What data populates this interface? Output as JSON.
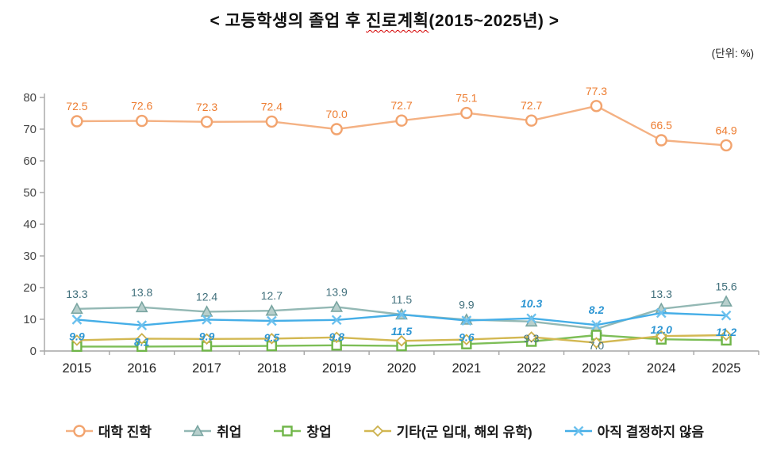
{
  "title": {
    "prefix": "< 고등학생의 졸업 후 ",
    "underlined": "진로계획",
    "suffix": "(2015~2025년) >"
  },
  "unit_label": "(단위: %)",
  "chart_data": {
    "type": "line",
    "title": "고등학생의 졸업 후 진로계획(2015~2025년)",
    "unit": "%",
    "categories": [
      "2015",
      "2016",
      "2017",
      "2018",
      "2019",
      "2020",
      "2021",
      "2022",
      "2023",
      "2024",
      "2025"
    ],
    "ylim": [
      0,
      80
    ],
    "yticks": [
      0,
      10,
      20,
      30,
      40,
      50,
      60,
      70,
      80
    ],
    "grid": false,
    "legend_position": "bottom",
    "axis_color": "#a6a6a6",
    "ytick_label_color": "#444444",
    "xtick_label_color": "#222222",
    "series": [
      {
        "key": "univ",
        "name": "대학 진학",
        "marker": "circle",
        "line_color": "#F4B183",
        "marker_stroke": "#F2A46F",
        "marker_fill": "#FFFFFF",
        "label_color": "#ED7D31",
        "label_style": "normal",
        "values": [
          72.5,
          72.6,
          72.3,
          72.4,
          70.0,
          72.7,
          75.1,
          72.7,
          77.3,
          66.5,
          64.9
        ],
        "label_sides": [
          "above",
          "above",
          "above",
          "above",
          "above",
          "above",
          "above",
          "above",
          "above",
          "above",
          "above"
        ]
      },
      {
        "key": "employment",
        "name": "취업",
        "marker": "triangle",
        "line_color": "#93B8B4",
        "marker_stroke": "#79A5A1",
        "marker_fill": "#B7CFCC",
        "label_color": "#41707C",
        "label_style": "normal",
        "values": [
          13.3,
          13.8,
          12.4,
          12.7,
          13.9,
          11.5,
          9.9,
          9.3,
          7.0,
          13.3,
          15.6
        ],
        "label_sides": [
          "above",
          "above",
          "above",
          "above",
          "above",
          "above",
          "above",
          "below",
          "below",
          "above",
          "above"
        ]
      },
      {
        "key": "startup",
        "name": "창업",
        "marker": "square",
        "line_color": "#7DBE57",
        "marker_stroke": "#6FB548",
        "marker_fill": "#FFFFFF",
        "values": [
          1.4,
          1.4,
          1.5,
          1.6,
          1.8,
          1.6,
          2.2,
          3.0,
          5.0,
          3.7,
          3.4
        ],
        "label_sides": null
      },
      {
        "key": "etc",
        "name": "기타(군 입대, 해외 유학)",
        "marker": "diamond",
        "line_color": "#D3B852",
        "marker_stroke": "#CBB04C",
        "marker_fill": "#FFFFFF",
        "values": [
          3.4,
          3.9,
          3.8,
          3.9,
          4.3,
          3.2,
          3.6,
          4.4,
          2.6,
          4.7,
          5.0
        ],
        "label_sides": null
      },
      {
        "key": "undecided",
        "name": "아직 결정하지 않음",
        "marker": "x",
        "line_color": "#45AEE7",
        "marker_stroke": "#6CC1EE",
        "marker_fill": "none",
        "label_color": "#2D96D3",
        "label_style": "italic",
        "values": [
          9.9,
          8.1,
          9.9,
          9.5,
          9.8,
          11.5,
          9.6,
          10.3,
          8.2,
          12.0,
          11.2
        ],
        "label_sides": [
          "below",
          "below",
          "below",
          "below",
          "below",
          "below",
          "below",
          "above",
          "above",
          "below",
          "below"
        ]
      }
    ]
  }
}
